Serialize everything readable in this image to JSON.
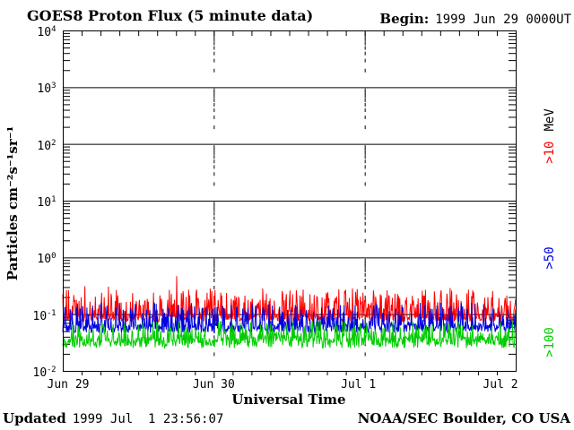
{
  "header": {
    "title": "GOES8 Proton Flux (5 minute data)",
    "begin_label": "Begin:",
    "begin_value": "1999 Jun 29 0000UT"
  },
  "footer": {
    "updated_label": "Updated",
    "updated_value": "1999 Jul  1 23:56:07",
    "credit": "NOAA/SEC Boulder, CO USA"
  },
  "chart_data": {
    "type": "line",
    "title": "GOES8 Proton Flux (5 minute data)",
    "xlabel": "Universal Time",
    "ylabel": "Particles cm⁻²s⁻¹sr⁻¹",
    "x_ticks": [
      "Jun 29",
      "Jun 30",
      "Jul 1",
      "Jul 2"
    ],
    "y_exponents": [
      4,
      3,
      2,
      1,
      0,
      -1,
      -2
    ],
    "ylim_log": [
      -2,
      4
    ],
    "x_days": 3,
    "points_per_day": 288,
    "n_points": 864,
    "minor_tick_hours": 3,
    "grid": {
      "decade_lines": "solid",
      "day_lines": "dashed"
    },
    "axis_color": "#000000",
    "seed": 7,
    "series": [
      {
        "name": ">10 MeV proton flux",
        "label": ">10",
        "unit": "MeV",
        "color": "#ff0000",
        "log_base": -1.07,
        "log_jitter": 0.07,
        "spike_prob": 0.45,
        "spike_max": 0.5,
        "log_min": -1.13,
        "log_max": -0.5,
        "event_spike": {
          "day": 0.755,
          "log_value": -0.33
        },
        "typical_flux_range": [
          0.08,
          0.3
        ]
      },
      {
        "name": ">50 MeV proton flux",
        "label": ">50",
        "unit": "",
        "color": "#0000dd",
        "log_base": -1.25,
        "log_jitter": 0.08,
        "spike_prob": 0.35,
        "spike_max": 0.45,
        "log_min": -1.42,
        "log_max": -0.8,
        "typical_flux_range": [
          0.04,
          0.12
        ]
      },
      {
        "name": ">100 MeV proton flux",
        "label": ">100",
        "unit": "",
        "color": "#00cc00",
        "log_base": -1.5,
        "log_jitter": 0.1,
        "spike_prob": 0.45,
        "spike_max": 0.35,
        "log_min": -1.72,
        "log_max": -1.13,
        "typical_flux_range": [
          0.02,
          0.07
        ]
      }
    ]
  }
}
